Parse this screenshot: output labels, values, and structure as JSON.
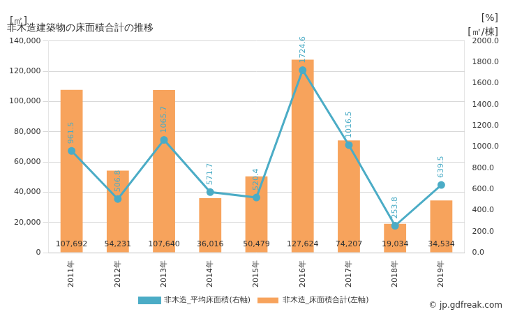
{
  "chart_data": {
    "type": "bar",
    "title": "非木造建築物の床面積合計の推移",
    "ylabel": "[㎡]",
    "y2label": "[㎡/棟]",
    "annotations": [
      "[%]",
      "© jp.gdfreak.com"
    ],
    "categories": [
      "2011年",
      "2012年",
      "2013年",
      "2014年",
      "2015年",
      "2016年",
      "2017年",
      "2018年",
      "2019年"
    ],
    "series": [
      {
        "name": "非木造_床面積合計(左軸)",
        "type": "bar",
        "color": "#f7a35c",
        "axis": "y",
        "values": [
          107692,
          54231,
          107640,
          36016,
          50479,
          127624,
          74207,
          19034,
          34534
        ],
        "value_labels": [
          "107,692",
          "54,231",
          "107,640",
          "36,016",
          "50,479",
          "127,624",
          "74,207",
          "19,034",
          "34,534"
        ]
      },
      {
        "name": "非木造_平均床面積(右軸)",
        "type": "line",
        "color": "#4bacc6",
        "axis": "y2",
        "marker": "circle",
        "values": [
          961.5,
          506.8,
          1065.7,
          571.7,
          520.4,
          1724.6,
          1016.5,
          253.8,
          639.5
        ]
      }
    ],
    "ylim": [
      0,
      140000
    ],
    "yticks": [
      0,
      {
        "value": 20000,
        "label": "20,000"
      },
      {
        "value": 40000,
        "label": "40,000"
      },
      {
        "value": 60000,
        "label": "60,000"
      },
      {
        "value": 80000,
        "label": "80,000"
      },
      {
        "value": 100000,
        "label": "100,000"
      },
      {
        "value": 120000,
        "label": "120,000"
      },
      {
        "value": 140000,
        "label": "140,000"
      }
    ],
    "y2lim": [
      0,
      2000
    ],
    "y2ticks": [
      {
        "value": 0,
        "label": "0.0"
      },
      {
        "value": 200,
        "label": "200.0"
      },
      {
        "value": 400,
        "label": "400.0"
      },
      {
        "value": 600,
        "label": "600.0"
      },
      {
        "value": 800,
        "label": "800.0"
      },
      {
        "value": 1000,
        "label": "1000.0"
      },
      {
        "value": 1200,
        "label": "1200.0"
      },
      {
        "value": 1400,
        "label": "1400.0"
      },
      {
        "value": 1600,
        "label": "1600.0"
      },
      {
        "value": 1800,
        "label": "1800.0"
      },
      {
        "value": 2000,
        "label": "2000.0"
      }
    ],
    "grid": true,
    "legend": "bottom",
    "data_labels": true
  }
}
